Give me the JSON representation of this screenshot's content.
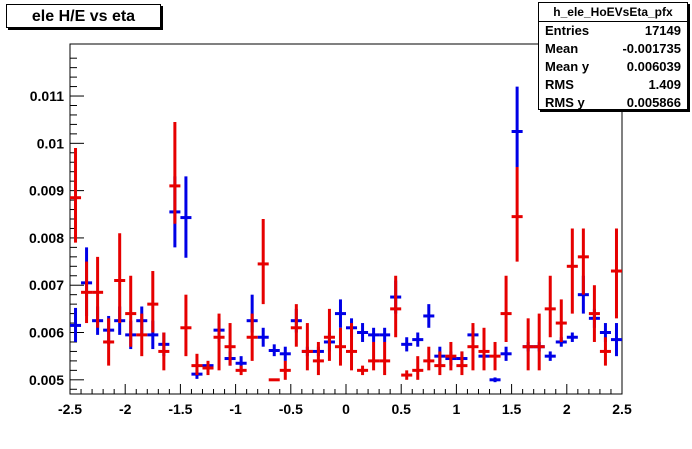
{
  "window": {
    "title": "ele H/E vs eta"
  },
  "stats": {
    "name": "h_ele_HoEVsEta_pfx",
    "rows": [
      {
        "label": "Entries",
        "value": "17149"
      },
      {
        "label": "Mean",
        "value": "-0.001735"
      },
      {
        "label": "Mean y",
        "value": "0.006039"
      },
      {
        "label": "RMS",
        "value": "1.409"
      },
      {
        "label": "RMS y",
        "value": "0.005866"
      }
    ]
  },
  "chart_data": {
    "type": "scatter",
    "title": "ele H/E vs eta",
    "xlabel": "",
    "ylabel": "",
    "xlim": [
      -2.5,
      2.5
    ],
    "ylim": [
      0.0047,
      0.0121
    ],
    "xticks": [
      -2.5,
      -2,
      -1.5,
      -1,
      -0.5,
      0,
      0.5,
      1,
      1.5,
      2,
      2.5
    ],
    "xtick_labels": [
      "-2.5",
      "-2",
      "-1.5",
      "-1",
      "-0.5",
      "0",
      "0.5",
      "1",
      "1.5",
      "2",
      "2.5"
    ],
    "yticks": [
      0.005,
      0.006,
      0.007,
      0.008,
      0.009,
      0.01,
      0.011
    ],
    "ytick_labels": [
      "0.005",
      "0.006",
      "0.007",
      "0.008",
      "0.009",
      "0.01",
      "0.011"
    ],
    "grid": false,
    "bin_half_width": 0.05,
    "colors": {
      "blue": "#0000e6",
      "red": "#e60000"
    },
    "series": [
      {
        "color": "blue",
        "points": [
          {
            "x": -2.45,
            "y": 0.00615,
            "lo": 0.0058,
            "hi": 0.00652
          },
          {
            "x": -2.35,
            "y": 0.00705,
            "lo": 0.00635,
            "hi": 0.0078
          },
          {
            "x": -2.25,
            "y": 0.00625,
            "lo": 0.00595,
            "hi": 0.00655
          },
          {
            "x": -2.15,
            "y": 0.00605,
            "lo": 0.00575,
            "hi": 0.00635
          },
          {
            "x": -2.05,
            "y": 0.00625,
            "lo": 0.00595,
            "hi": 0.00655
          },
          {
            "x": -1.95,
            "y": 0.00595,
            "lo": 0.00565,
            "hi": 0.00625
          },
          {
            "x": -1.85,
            "y": 0.00625,
            "lo": 0.00595,
            "hi": 0.00655
          },
          {
            "x": -1.75,
            "y": 0.00595,
            "lo": 0.00565,
            "hi": 0.00625
          },
          {
            "x": -1.65,
            "y": 0.00575,
            "lo": 0.0055,
            "hi": 0.006
          },
          {
            "x": -1.55,
            "y": 0.00855,
            "lo": 0.0078,
            "hi": 0.0093
          },
          {
            "x": -1.45,
            "y": 0.00843,
            "lo": 0.00758,
            "hi": 0.0093
          },
          {
            "x": -1.35,
            "y": 0.00512,
            "lo": 0.00502,
            "hi": 0.00522
          },
          {
            "x": -1.25,
            "y": 0.0053,
            "lo": 0.0052,
            "hi": 0.0054
          },
          {
            "x": -1.15,
            "y": 0.00605,
            "lo": 0.0058,
            "hi": 0.0063
          },
          {
            "x": -1.05,
            "y": 0.00545,
            "lo": 0.0053,
            "hi": 0.0056
          },
          {
            "x": -0.95,
            "y": 0.00535,
            "lo": 0.0052,
            "hi": 0.0055
          },
          {
            "x": -0.85,
            "y": 0.00625,
            "lo": 0.006,
            "hi": 0.0068
          },
          {
            "x": -0.75,
            "y": 0.0059,
            "lo": 0.0057,
            "hi": 0.0061
          },
          {
            "x": -0.65,
            "y": 0.00562,
            "lo": 0.0055,
            "hi": 0.00575
          },
          {
            "x": -0.55,
            "y": 0.00555,
            "lo": 0.0054,
            "hi": 0.0057
          },
          {
            "x": -0.45,
            "y": 0.00625,
            "lo": 0.006,
            "hi": 0.0065
          },
          {
            "x": -0.35,
            "y": 0.0056,
            "lo": 0.0055,
            "hi": 0.0057
          },
          {
            "x": -0.25,
            "y": 0.0056,
            "lo": 0.0055,
            "hi": 0.0057
          },
          {
            "x": -0.15,
            "y": 0.0058,
            "lo": 0.0056,
            "hi": 0.006
          },
          {
            "x": -0.05,
            "y": 0.0064,
            "lo": 0.0061,
            "hi": 0.0067
          },
          {
            "x": 0.05,
            "y": 0.0061,
            "lo": 0.0059,
            "hi": 0.0063
          },
          {
            "x": 0.15,
            "y": 0.006,
            "lo": 0.0058,
            "hi": 0.0062
          },
          {
            "x": 0.25,
            "y": 0.00595,
            "lo": 0.0058,
            "hi": 0.0061
          },
          {
            "x": 0.35,
            "y": 0.00595,
            "lo": 0.0058,
            "hi": 0.0061
          },
          {
            "x": 0.45,
            "y": 0.00675,
            "lo": 0.0064,
            "hi": 0.0071
          },
          {
            "x": 0.55,
            "y": 0.00575,
            "lo": 0.0056,
            "hi": 0.0059
          },
          {
            "x": 0.65,
            "y": 0.00585,
            "lo": 0.0057,
            "hi": 0.006
          },
          {
            "x": 0.75,
            "y": 0.00635,
            "lo": 0.0061,
            "hi": 0.0066
          },
          {
            "x": 0.85,
            "y": 0.0055,
            "lo": 0.0053,
            "hi": 0.0057
          },
          {
            "x": 0.95,
            "y": 0.00545,
            "lo": 0.0053,
            "hi": 0.0056
          },
          {
            "x": 1.05,
            "y": 0.00545,
            "lo": 0.0053,
            "hi": 0.0056
          },
          {
            "x": 1.15,
            "y": 0.00595,
            "lo": 0.0058,
            "hi": 0.0061
          },
          {
            "x": 1.25,
            "y": 0.0055,
            "lo": 0.0054,
            "hi": 0.0056
          },
          {
            "x": 1.35,
            "y": 0.005,
            "lo": 0.00495,
            "hi": 0.00505
          },
          {
            "x": 1.45,
            "y": 0.00555,
            "lo": 0.0054,
            "hi": 0.0057
          },
          {
            "x": 1.55,
            "y": 0.01025,
            "lo": 0.0095,
            "hi": 0.0112
          },
          {
            "x": 1.65,
            "y": 0.0057,
            "lo": 0.0056,
            "hi": 0.0058
          },
          {
            "x": 1.75,
            "y": 0.0057,
            "lo": 0.0056,
            "hi": 0.0058
          },
          {
            "x": 1.85,
            "y": 0.0055,
            "lo": 0.0054,
            "hi": 0.0056
          },
          {
            "x": 1.95,
            "y": 0.0058,
            "lo": 0.0057,
            "hi": 0.0059
          },
          {
            "x": 2.05,
            "y": 0.0059,
            "lo": 0.0058,
            "hi": 0.006
          },
          {
            "x": 2.15,
            "y": 0.0068,
            "lo": 0.0064,
            "hi": 0.0072
          },
          {
            "x": 2.25,
            "y": 0.0063,
            "lo": 0.0061,
            "hi": 0.0065
          },
          {
            "x": 2.35,
            "y": 0.006,
            "lo": 0.0058,
            "hi": 0.0062
          },
          {
            "x": 2.45,
            "y": 0.00585,
            "lo": 0.0055,
            "hi": 0.0062
          }
        ]
      },
      {
        "color": "red",
        "points": [
          {
            "x": -2.45,
            "y": 0.00885,
            "lo": 0.0079,
            "hi": 0.0099
          },
          {
            "x": -2.35,
            "y": 0.00685,
            "lo": 0.0062,
            "hi": 0.0075
          },
          {
            "x": -2.25,
            "y": 0.00685,
            "lo": 0.0061,
            "hi": 0.0076
          },
          {
            "x": -2.15,
            "y": 0.0058,
            "lo": 0.0053,
            "hi": 0.0063
          },
          {
            "x": -2.05,
            "y": 0.0071,
            "lo": 0.0062,
            "hi": 0.0081
          },
          {
            "x": -1.95,
            "y": 0.0064,
            "lo": 0.0057,
            "hi": 0.0072
          },
          {
            "x": -1.85,
            "y": 0.00595,
            "lo": 0.0055,
            "hi": 0.0064
          },
          {
            "x": -1.75,
            "y": 0.0066,
            "lo": 0.006,
            "hi": 0.0073
          },
          {
            "x": -1.65,
            "y": 0.0056,
            "lo": 0.0052,
            "hi": 0.006
          },
          {
            "x": -1.55,
            "y": 0.0091,
            "lo": 0.0083,
            "hi": 0.01045
          },
          {
            "x": -1.45,
            "y": 0.0061,
            "lo": 0.0055,
            "hi": 0.0068
          },
          {
            "x": -1.35,
            "y": 0.0053,
            "lo": 0.0051,
            "hi": 0.00555
          },
          {
            "x": -1.25,
            "y": 0.00525,
            "lo": 0.0051,
            "hi": 0.0054
          },
          {
            "x": -1.15,
            "y": 0.0059,
            "lo": 0.0052,
            "hi": 0.0064
          },
          {
            "x": -1.05,
            "y": 0.0057,
            "lo": 0.0053,
            "hi": 0.0062
          },
          {
            "x": -0.95,
            "y": 0.0052,
            "lo": 0.0051,
            "hi": 0.0053
          },
          {
            "x": -0.85,
            "y": 0.0059,
            "lo": 0.0054,
            "hi": 0.0064
          },
          {
            "x": -0.75,
            "y": 0.00745,
            "lo": 0.0066,
            "hi": 0.0084
          },
          {
            "x": -0.65,
            "y": 0.005,
            "lo": 0.005,
            "hi": 0.005
          },
          {
            "x": -0.55,
            "y": 0.0052,
            "lo": 0.005,
            "hi": 0.0054
          },
          {
            "x": -0.45,
            "y": 0.0061,
            "lo": 0.0057,
            "hi": 0.0066
          },
          {
            "x": -0.35,
            "y": 0.0056,
            "lo": 0.0052,
            "hi": 0.0062
          },
          {
            "x": -0.25,
            "y": 0.0054,
            "lo": 0.0051,
            "hi": 0.0058
          },
          {
            "x": -0.15,
            "y": 0.0059,
            "lo": 0.0054,
            "hi": 0.0065
          },
          {
            "x": -0.05,
            "y": 0.0057,
            "lo": 0.0053,
            "hi": 0.0061
          },
          {
            "x": 0.05,
            "y": 0.0056,
            "lo": 0.0052,
            "hi": 0.0062
          },
          {
            "x": 0.15,
            "y": 0.0052,
            "lo": 0.0051,
            "hi": 0.0053
          },
          {
            "x": 0.25,
            "y": 0.0054,
            "lo": 0.0052,
            "hi": 0.0058
          },
          {
            "x": 0.35,
            "y": 0.0054,
            "lo": 0.0051,
            "hi": 0.0058
          },
          {
            "x": 0.45,
            "y": 0.0065,
            "lo": 0.0059,
            "hi": 0.0072
          },
          {
            "x": 0.55,
            "y": 0.0051,
            "lo": 0.005,
            "hi": 0.0052
          },
          {
            "x": 0.65,
            "y": 0.0052,
            "lo": 0.005,
            "hi": 0.0055
          },
          {
            "x": 0.75,
            "y": 0.0054,
            "lo": 0.0052,
            "hi": 0.0057
          },
          {
            "x": 0.85,
            "y": 0.0053,
            "lo": 0.0051,
            "hi": 0.0056
          },
          {
            "x": 0.95,
            "y": 0.0055,
            "lo": 0.0052,
            "hi": 0.0058
          },
          {
            "x": 1.05,
            "y": 0.0053,
            "lo": 0.0051,
            "hi": 0.0056
          },
          {
            "x": 1.15,
            "y": 0.0057,
            "lo": 0.0052,
            "hi": 0.0062
          },
          {
            "x": 1.25,
            "y": 0.0056,
            "lo": 0.0052,
            "hi": 0.0061
          },
          {
            "x": 1.35,
            "y": 0.0055,
            "lo": 0.0052,
            "hi": 0.0058
          },
          {
            "x": 1.45,
            "y": 0.0064,
            "lo": 0.0058,
            "hi": 0.0072
          },
          {
            "x": 1.55,
            "y": 0.00845,
            "lo": 0.0075,
            "hi": 0.0095
          },
          {
            "x": 1.65,
            "y": 0.0057,
            "lo": 0.0052,
            "hi": 0.0063
          },
          {
            "x": 1.75,
            "y": 0.0057,
            "lo": 0.0052,
            "hi": 0.0064
          },
          {
            "x": 1.85,
            "y": 0.0065,
            "lo": 0.0059,
            "hi": 0.0072
          },
          {
            "x": 1.95,
            "y": 0.0062,
            "lo": 0.0058,
            "hi": 0.0067
          },
          {
            "x": 2.05,
            "y": 0.0074,
            "lo": 0.0064,
            "hi": 0.0082
          },
          {
            "x": 2.15,
            "y": 0.0076,
            "lo": 0.0068,
            "hi": 0.0082
          },
          {
            "x": 2.25,
            "y": 0.0064,
            "lo": 0.0058,
            "hi": 0.007
          },
          {
            "x": 2.35,
            "y": 0.0056,
            "lo": 0.0053,
            "hi": 0.0059
          },
          {
            "x": 2.45,
            "y": 0.0073,
            "lo": 0.0063,
            "hi": 0.0082
          }
        ]
      }
    ]
  }
}
